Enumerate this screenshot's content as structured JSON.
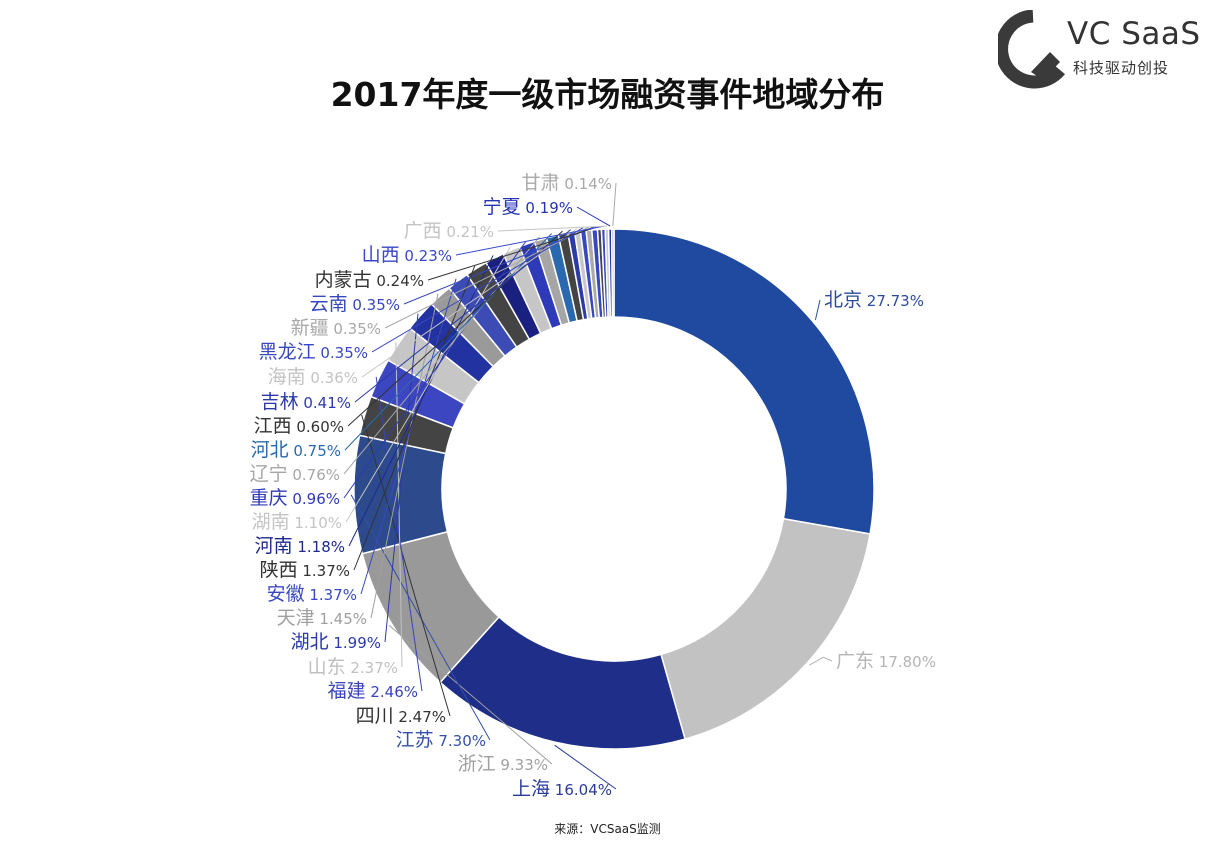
{
  "brand": {
    "name": "VC SaaS",
    "tagline": "科技驱动创投",
    "colors": {
      "logo": "#333333"
    }
  },
  "chart_data": {
    "type": "pie",
    "title": "2017年度一级市场融资事件地域分布",
    "source": "来源：VCSaaS监测",
    "slices": [
      {
        "label": "北京",
        "value": 27.73,
        "text": "27.73%",
        "color": "#1f4aa0",
        "textColor": "#2b4c9c"
      },
      {
        "label": "广东",
        "value": 17.8,
        "text": "17.80%",
        "color": "#c2c2c2",
        "textColor": "#b4b4b4"
      },
      {
        "label": "上海",
        "value": 16.04,
        "text": "16.04%",
        "color": "#1f2e88",
        "textColor": "#2a3b9a"
      },
      {
        "label": "浙江",
        "value": 9.33,
        "text": "9.33%",
        "color": "#999999",
        "textColor": "#a0a0a0"
      },
      {
        "label": "江苏",
        "value": 7.3,
        "text": "7.30%",
        "color": "#2c4a8c",
        "textColor": "#3450a8"
      },
      {
        "label": "四川",
        "value": 2.47,
        "text": "2.47%",
        "color": "#444444",
        "textColor": "#333333"
      },
      {
        "label": "福建",
        "value": 2.46,
        "text": "2.46%",
        "color": "#3c46c0",
        "textColor": "#3a44b8"
      },
      {
        "label": "山东",
        "value": 2.37,
        "text": "2.37%",
        "color": "#c6c6c6",
        "textColor": "#c0c0c0"
      },
      {
        "label": "湖北",
        "value": 1.99,
        "text": "1.99%",
        "color": "#2232a0",
        "textColor": "#2a3aa8"
      },
      {
        "label": "天津",
        "value": 1.45,
        "text": "1.45%",
        "color": "#9a9a9a",
        "textColor": "#a0a0a0"
      },
      {
        "label": "安徽",
        "value": 1.37,
        "text": "1.37%",
        "color": "#3c4cb4",
        "textColor": "#3a4ac0"
      },
      {
        "label": "陕西",
        "value": 1.37,
        "text": "1.37%",
        "color": "#444444",
        "textColor": "#333333"
      },
      {
        "label": "河南",
        "value": 1.18,
        "text": "1.18%",
        "color": "#1a2080",
        "textColor": "#1e2a8a"
      },
      {
        "label": "湖南",
        "value": 1.1,
        "text": "1.10%",
        "color": "#c6c6c6",
        "textColor": "#c4c4c4"
      },
      {
        "label": "重庆",
        "value": 0.96,
        "text": "0.96%",
        "color": "#2e3ab8",
        "textColor": "#2e3ab8"
      },
      {
        "label": "辽宁",
        "value": 0.76,
        "text": "0.76%",
        "color": "#a6a6a6",
        "textColor": "#a6a6a6"
      },
      {
        "label": "河北",
        "value": 0.75,
        "text": "0.75%",
        "color": "#2a68b0",
        "textColor": "#2a68b0"
      },
      {
        "label": "江西",
        "value": 0.6,
        "text": "0.60%",
        "color": "#444444",
        "textColor": "#333333"
      },
      {
        "label": "吉林",
        "value": 0.41,
        "text": "0.41%",
        "color": "#2c3aa8",
        "textColor": "#2c3aa8"
      },
      {
        "label": "海南",
        "value": 0.36,
        "text": "0.36%",
        "color": "#c8c8c8",
        "textColor": "#c4c4c4"
      },
      {
        "label": "黑龙江",
        "value": 0.35,
        "text": "0.35%",
        "color": "#3848c0",
        "textColor": "#3848c0"
      },
      {
        "label": "新疆",
        "value": 0.35,
        "text": "0.35%",
        "color": "#aaaaaa",
        "textColor": "#a8a8a8"
      },
      {
        "label": "云南",
        "value": 0.35,
        "text": "0.35%",
        "color": "#3648bc",
        "textColor": "#3648bc"
      },
      {
        "label": "内蒙古",
        "value": 0.24,
        "text": "0.24%",
        "color": "#444444",
        "textColor": "#333333"
      },
      {
        "label": "山西",
        "value": 0.23,
        "text": "0.23%",
        "color": "#3848c8",
        "textColor": "#3848c8"
      },
      {
        "label": "广西",
        "value": 0.21,
        "text": "0.21%",
        "color": "#c8c8c8",
        "textColor": "#c4c4c4"
      },
      {
        "label": "宁夏",
        "value": 0.19,
        "text": "0.19%",
        "color": "#2434b0",
        "textColor": "#2434b0"
      },
      {
        "label": "甘肃",
        "value": 0.14,
        "text": "0.14%",
        "color": "#a8a8a8",
        "textColor": "#a8a8a8"
      }
    ],
    "legend": "none"
  }
}
